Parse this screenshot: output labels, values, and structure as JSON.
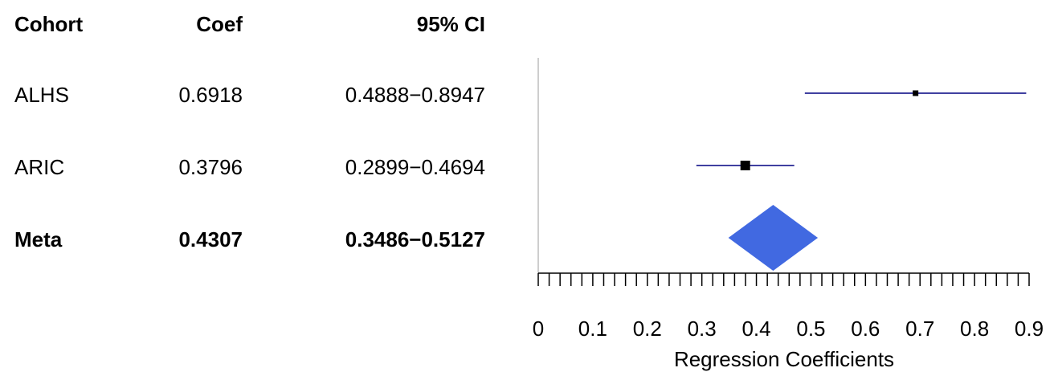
{
  "chart_data": {
    "type": "forest",
    "table": {
      "headers": {
        "cohort": "Cohort",
        "coef": "Coef",
        "ci": "95% CI"
      },
      "rows": [
        {
          "cohort": "ALHS",
          "coef": "0.6918",
          "ci": "0.4888−0.8947",
          "bold": false
        },
        {
          "cohort": "ARIC",
          "coef": "0.3796",
          "ci": "0.2899−0.4694",
          "bold": false
        },
        {
          "cohort": "Meta",
          "coef": "0.4307",
          "ci": "0.3486−0.5127",
          "bold": true
        }
      ]
    },
    "studies": [
      {
        "name": "ALHS",
        "estimate": 0.6918,
        "lower": 0.4888,
        "upper": 0.8947,
        "weight": "small"
      },
      {
        "name": "ARIC",
        "estimate": 0.3796,
        "lower": 0.2899,
        "upper": 0.4694,
        "weight": "large"
      }
    ],
    "summary": {
      "name": "Meta",
      "estimate": 0.4307,
      "lower": 0.3486,
      "upper": 0.5127
    },
    "xlabel": "Regression Coefficients",
    "xlim": [
      0,
      0.9
    ],
    "ticks": [
      "0",
      "0.1",
      "0.2",
      "0.3",
      "0.4",
      "0.5",
      "0.6",
      "0.7",
      "0.8",
      "0.9"
    ],
    "minor_tick_step": 0.02,
    "reference_line": 0,
    "colors": {
      "ci_line": "#000080",
      "point": "#000000",
      "diamond": "#4169E1",
      "reference_line": "#BEBEBE",
      "axis": "#000000"
    }
  }
}
